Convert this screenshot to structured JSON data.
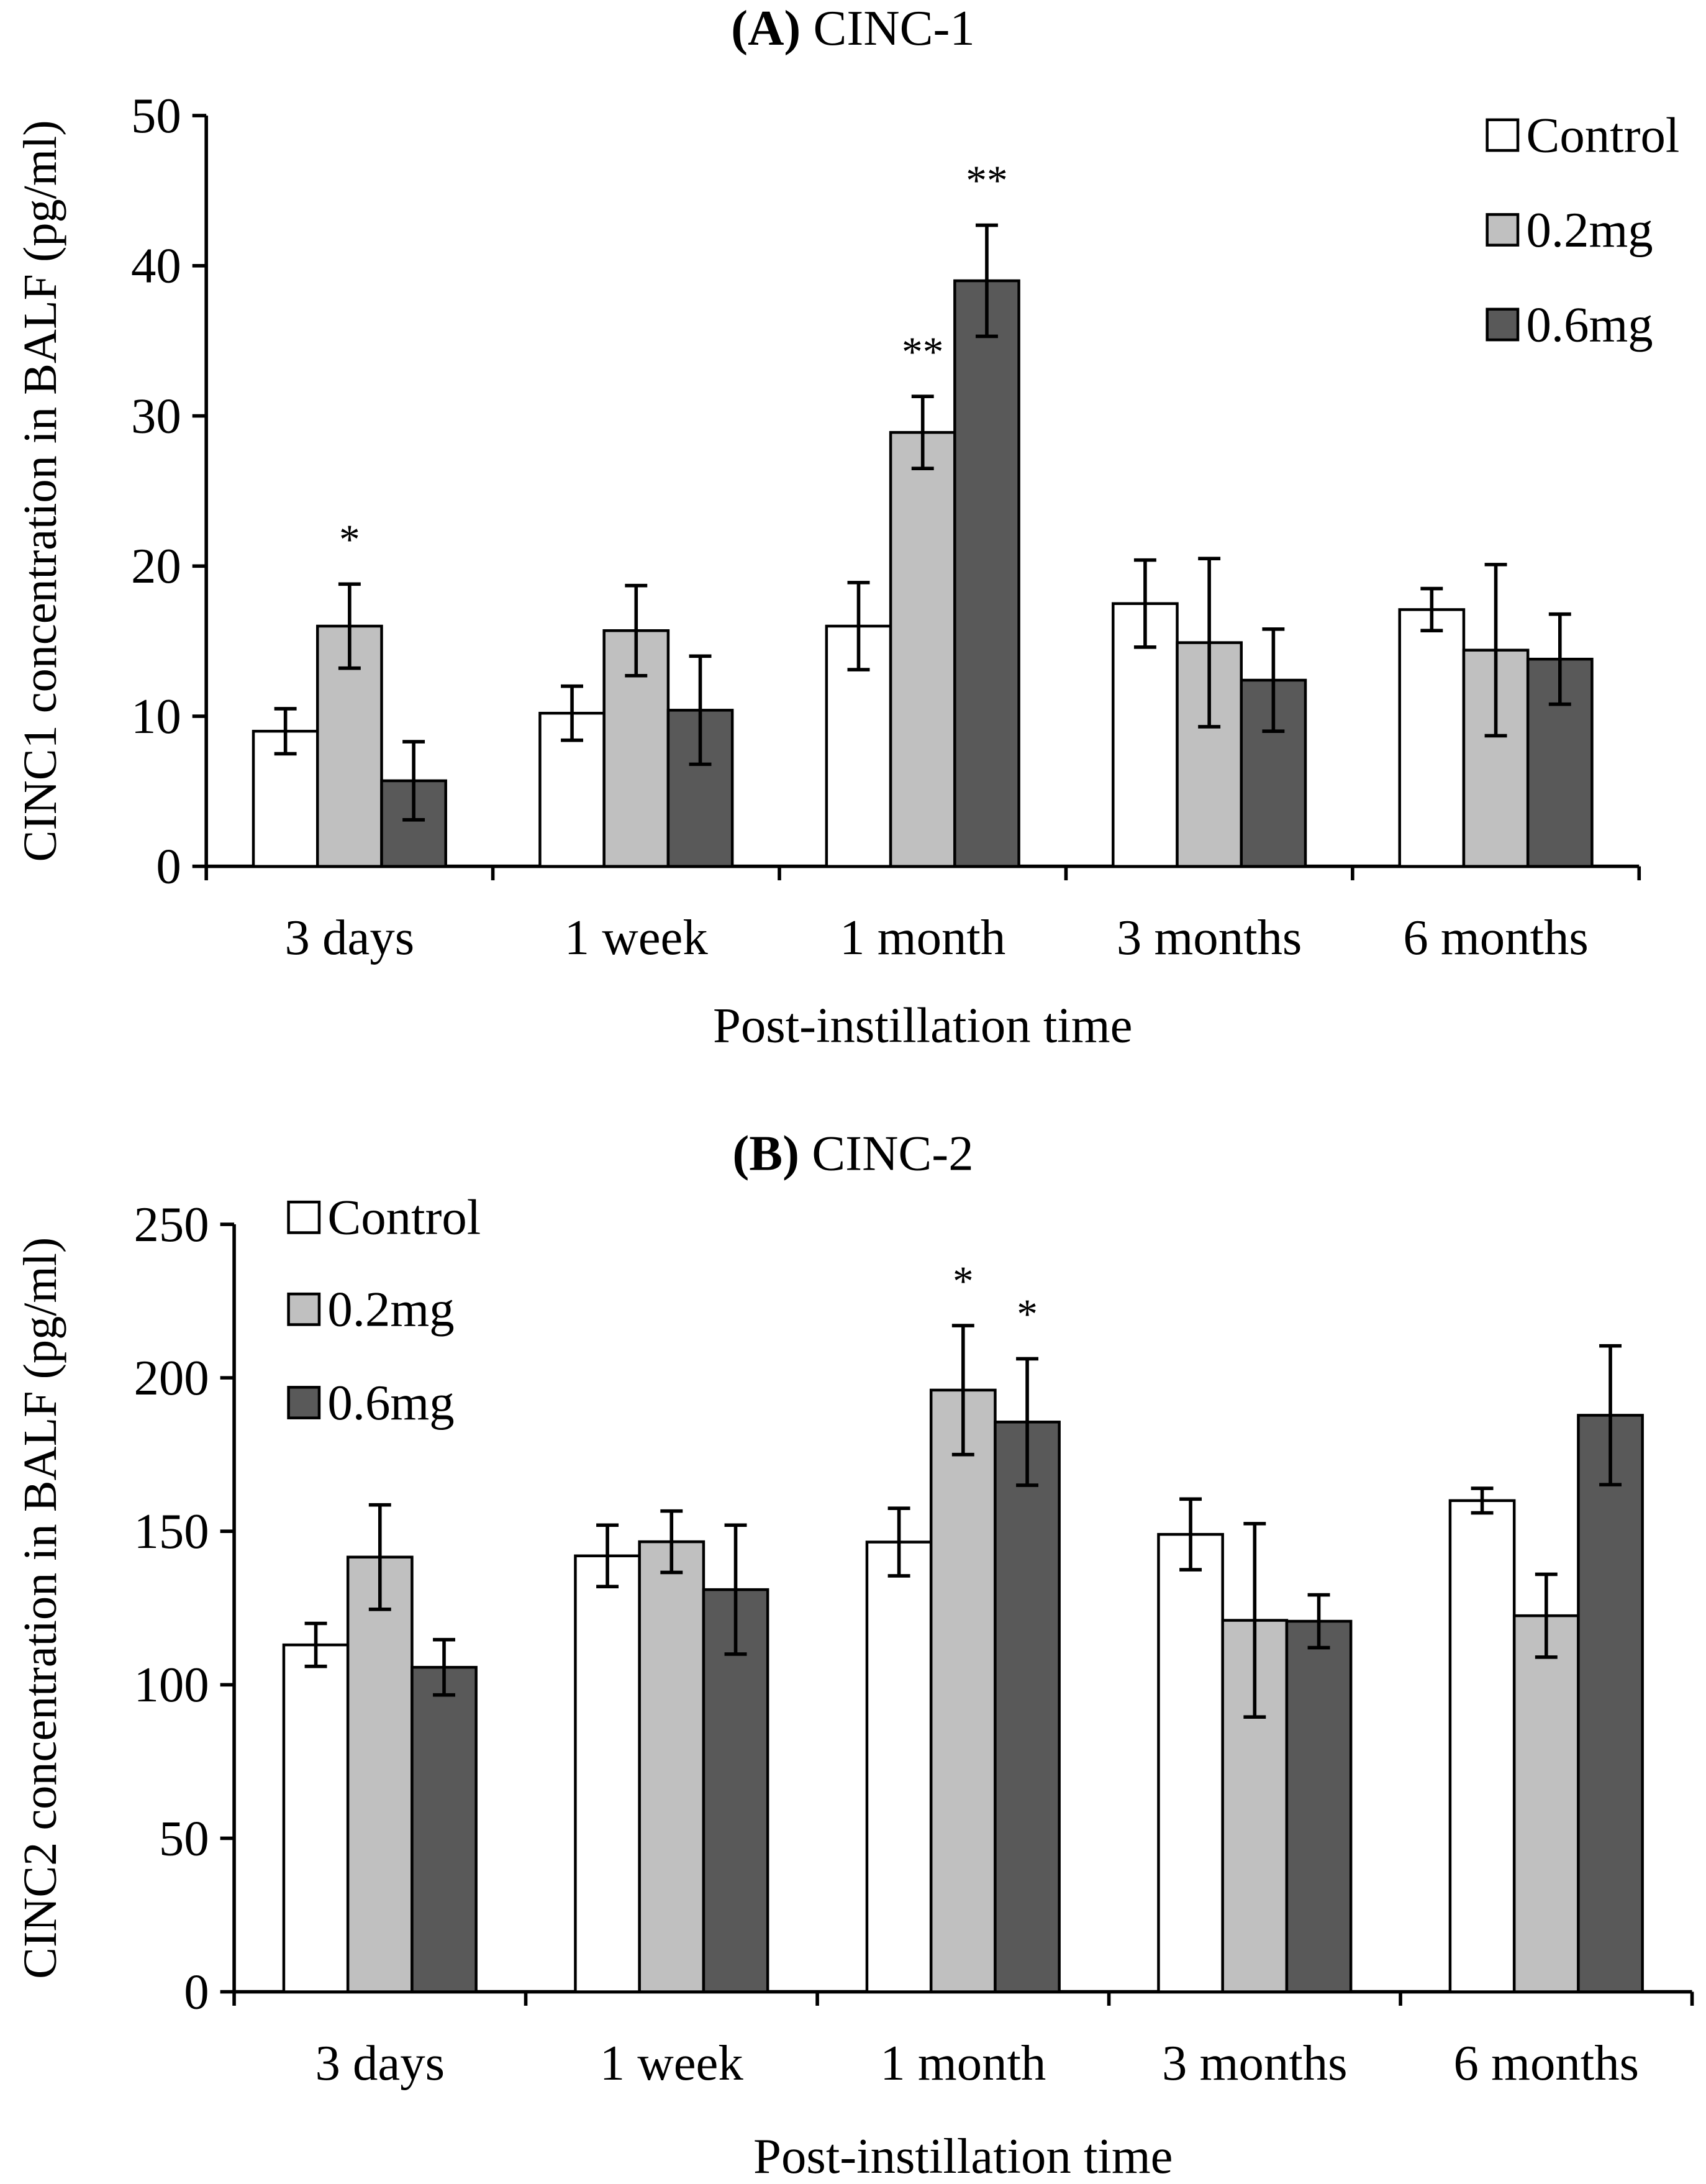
{
  "colors": {
    "Control": "#ffffff",
    "0.2mg": "#c0c0c0",
    "0.6mg": "#595959"
  },
  "chart_data": [
    {
      "type": "bar",
      "title_bold": "(A)",
      "title_rest": " CINC-1",
      "xlabel": "Post-instillation time",
      "ylabel": "CINC1 concentration in BALF (pg/ml)",
      "ylim": [
        0,
        50
      ],
      "yticks": [
        0,
        10,
        20,
        30,
        40,
        50
      ],
      "legend_position": "top-right",
      "categories": [
        "3 days",
        "1 week",
        "1 month",
        "3 months",
        "6 months"
      ],
      "series": [
        {
          "name": "Control",
          "values": [
            9.0,
            10.2,
            16.0,
            17.5,
            17.1
          ],
          "errors": [
            1.5,
            1.8,
            2.9,
            2.9,
            1.4
          ],
          "annotations": [
            "",
            "",
            "",
            "",
            ""
          ]
        },
        {
          "name": "0.2mg",
          "values": [
            16.0,
            15.7,
            28.9,
            14.9,
            14.4
          ],
          "errors": [
            2.8,
            3.0,
            2.4,
            5.6,
            5.7
          ],
          "annotations": [
            "*",
            "",
            "**",
            "",
            ""
          ]
        },
        {
          "name": "0.6mg",
          "values": [
            5.7,
            10.4,
            39.0,
            12.4,
            13.8
          ],
          "errors": [
            2.6,
            3.6,
            3.7,
            3.4,
            3.0
          ],
          "annotations": [
            "",
            "",
            "**",
            "",
            ""
          ]
        }
      ]
    },
    {
      "type": "bar",
      "title_bold": "(B)",
      "title_rest": " CINC-2",
      "xlabel": "Post-instillation time",
      "ylabel": "CINC2 concentration in BALF (pg/ml)",
      "ylim": [
        0,
        250
      ],
      "yticks": [
        0,
        50,
        100,
        150,
        200,
        250
      ],
      "legend_position": "top-left",
      "categories": [
        "3 days",
        "1 week",
        "1 month",
        "3 months",
        "6 months"
      ],
      "series": [
        {
          "name": "Control",
          "values": [
            113,
            142,
            146.5,
            149,
            160
          ],
          "errors": [
            7,
            10,
            11,
            11.5,
            4
          ],
          "annotations": [
            "",
            "",
            "",
            "",
            ""
          ]
        },
        {
          "name": "0.2mg",
          "values": [
            141.6,
            146.6,
            196,
            121,
            122.5
          ],
          "errors": [
            17,
            10,
            21,
            31.5,
            13.5
          ],
          "annotations": [
            "",
            "",
            "*",
            "",
            ""
          ]
        },
        {
          "name": "0.6mg",
          "values": [
            105.7,
            131,
            185.6,
            120.7,
            187.8
          ],
          "errors": [
            9,
            21,
            20.6,
            8.6,
            22.6
          ],
          "annotations": [
            "",
            "",
            "*",
            "",
            ""
          ]
        }
      ]
    }
  ]
}
